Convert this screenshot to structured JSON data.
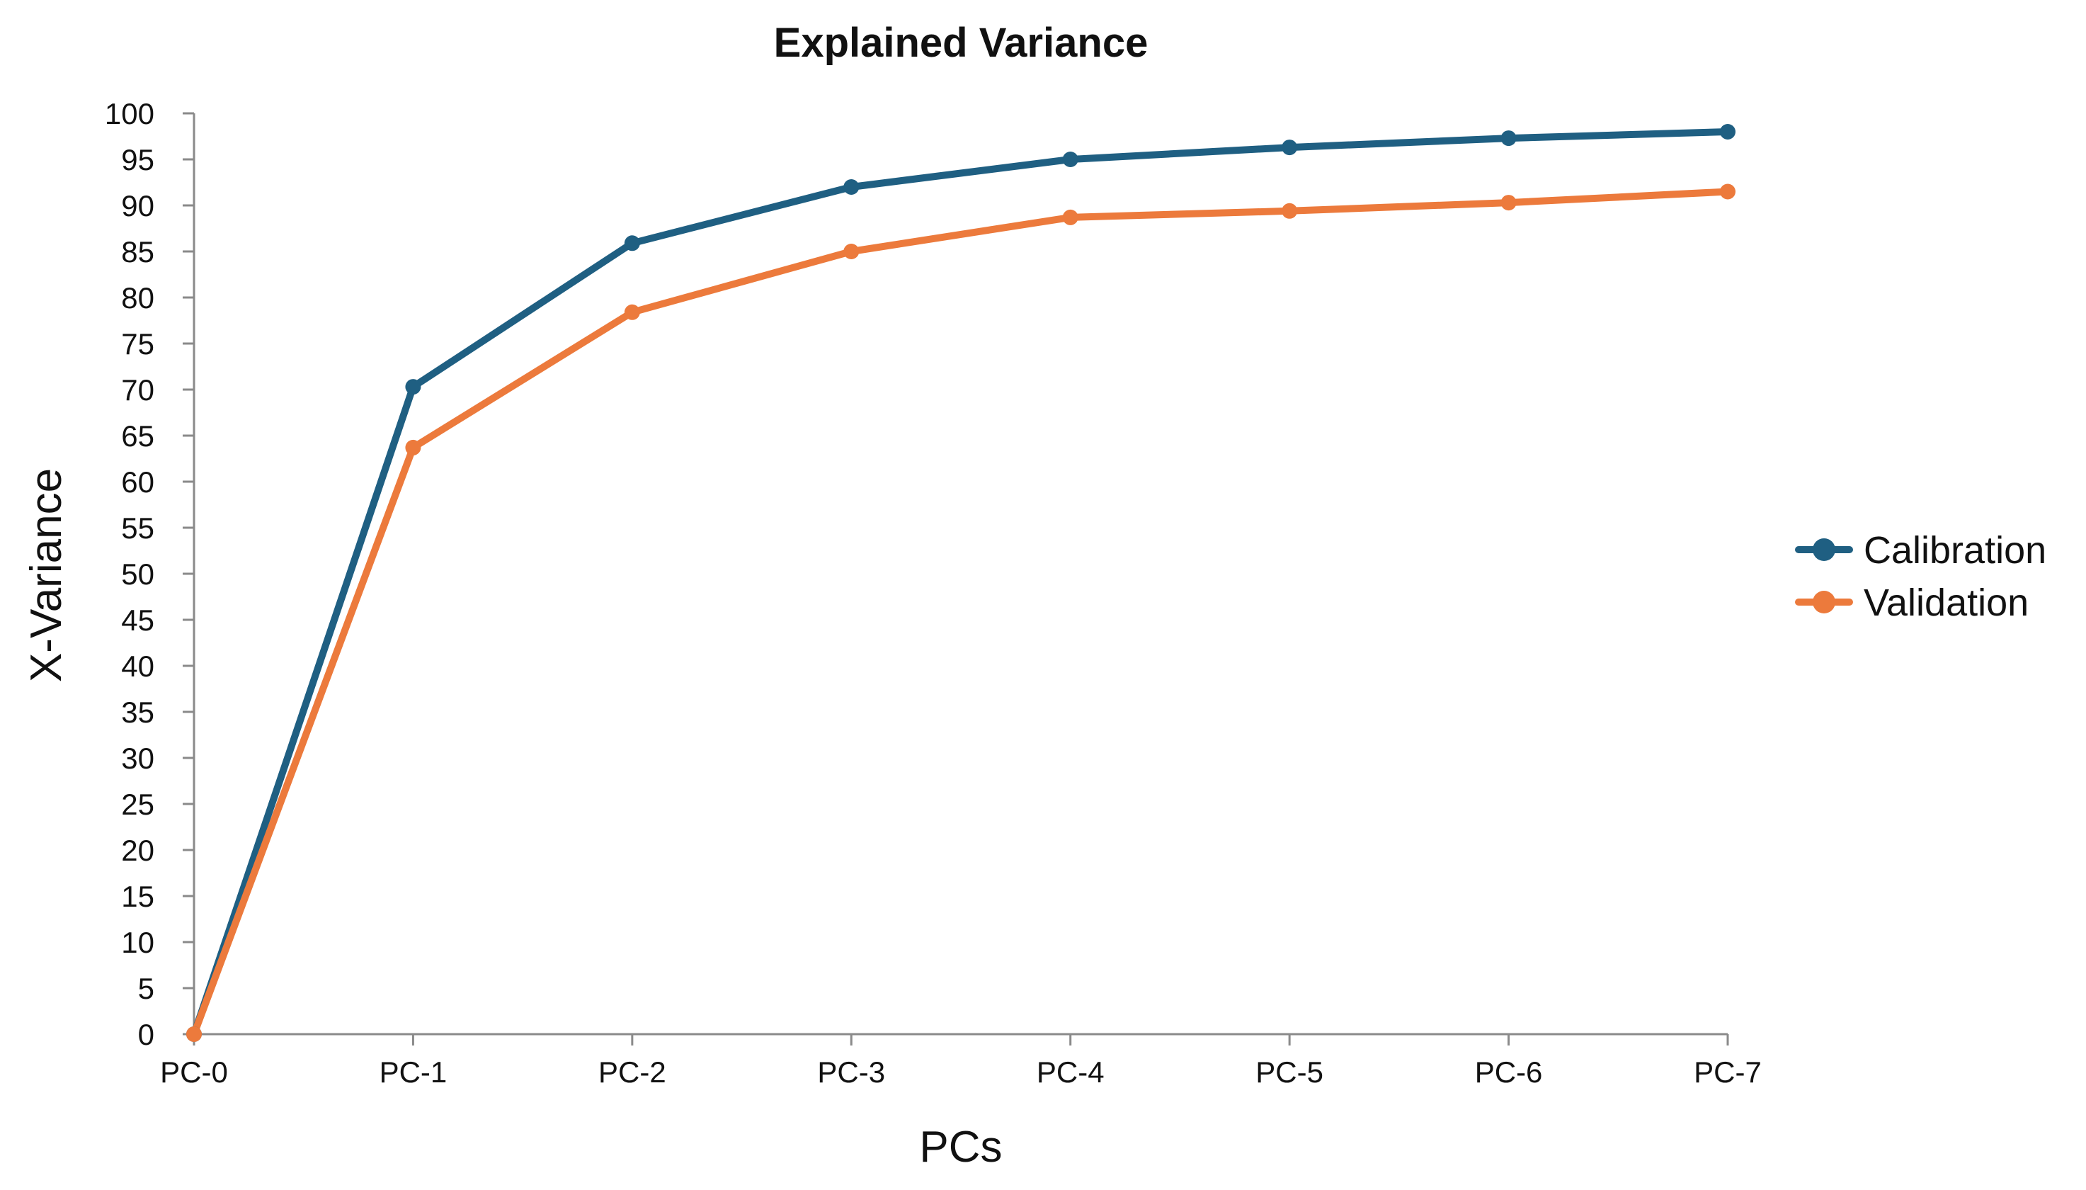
{
  "chart_data": {
    "type": "line",
    "title": "Explained Variance",
    "xlabel": "PCs",
    "ylabel": "X-Variance",
    "categories": [
      "PC-0",
      "PC-1",
      "PC-2",
      "PC-3",
      "PC-4",
      "PC-5",
      "PC-6",
      "PC-7"
    ],
    "yticks": [
      "0",
      "5",
      "10",
      "15",
      "20",
      "25",
      "30",
      "35",
      "40",
      "45",
      "50",
      "55",
      "60",
      "65",
      "70",
      "75",
      "80",
      "85",
      "90",
      "95",
      "100"
    ],
    "ylim": [
      0,
      100
    ],
    "grid": false,
    "legend_position": "right",
    "series": [
      {
        "name": "Calibration",
        "color": "#1f5f82",
        "values": [
          0,
          70.3,
          85.9,
          92.0,
          95.0,
          96.3,
          97.3,
          98.0
        ]
      },
      {
        "name": "Validation",
        "color": "#ec7a3c",
        "values": [
          0,
          63.7,
          78.4,
          85.0,
          88.7,
          89.4,
          90.3,
          91.5
        ]
      }
    ]
  }
}
